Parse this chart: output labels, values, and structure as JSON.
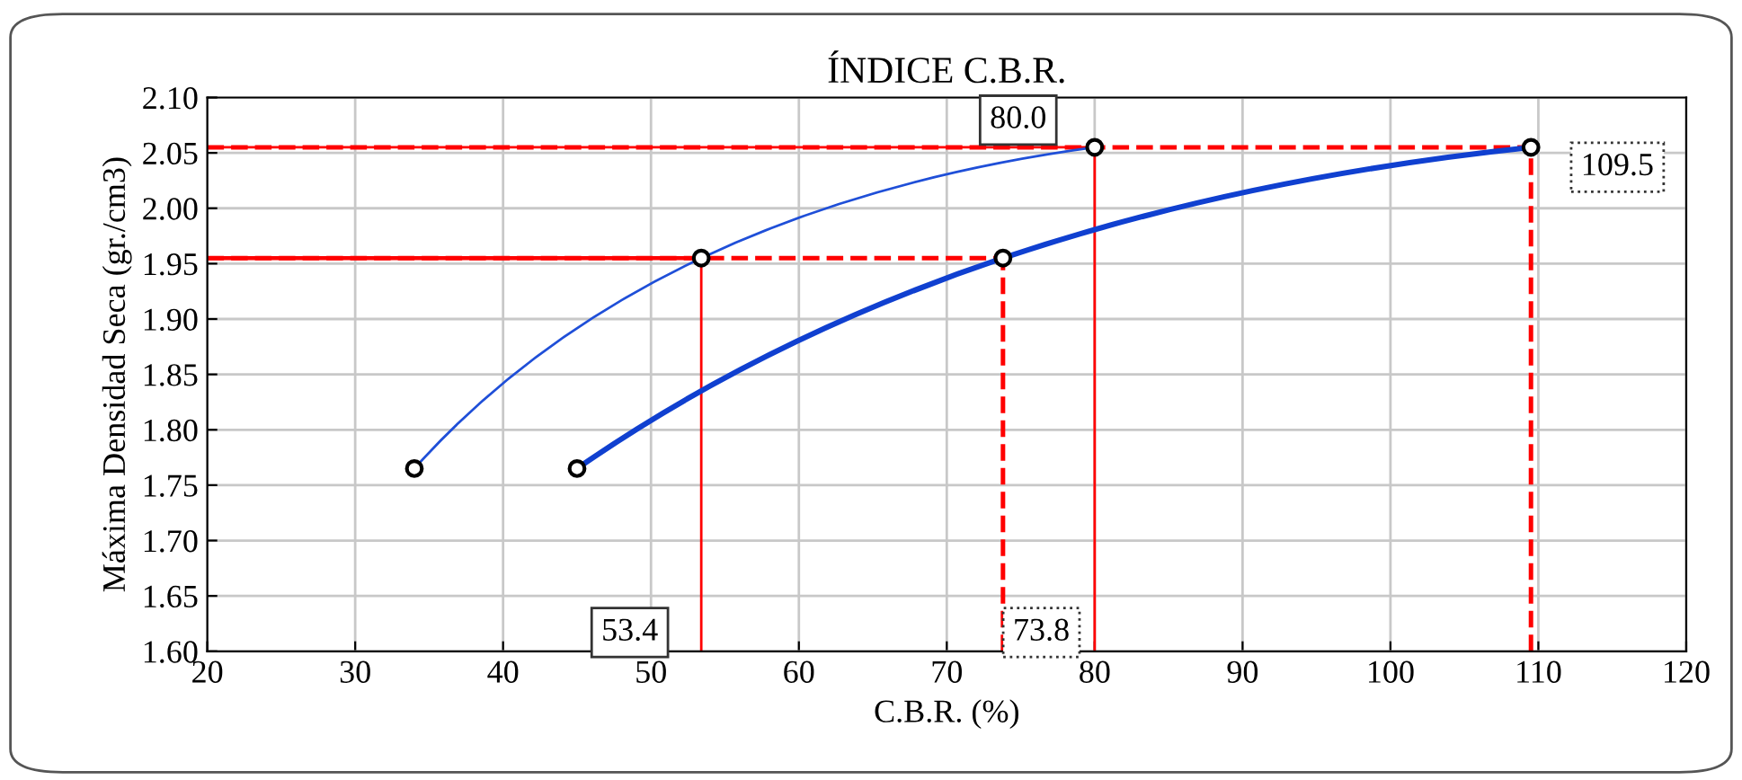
{
  "chart_data": {
    "type": "line",
    "title": "ÍNDICE C.B.R.",
    "xlabel": "C.B.R. (%)",
    "ylabel": "Máxima Densidad Seca (gr./cm3)",
    "xlim": [
      20,
      120
    ],
    "xticks": [
      20,
      30,
      40,
      50,
      60,
      70,
      80,
      90,
      100,
      110,
      120
    ],
    "ylim": [
      1.6,
      2.1
    ],
    "yticks": [
      {
        "value": 1.6,
        "label": "1.60"
      },
      {
        "value": 1.65,
        "label": "1.65"
      },
      {
        "value": 1.7,
        "label": "1.70"
      },
      {
        "value": 1.75,
        "label": "1.75"
      },
      {
        "value": 1.8,
        "label": "1.80"
      },
      {
        "value": 1.85,
        "label": "1.85"
      },
      {
        "value": 1.9,
        "label": "1.90"
      },
      {
        "value": 1.95,
        "label": "1.95"
      },
      {
        "value": 2.0,
        "label": "2.00"
      },
      {
        "value": 2.05,
        "label": "2.05"
      },
      {
        "value": 2.1,
        "label": "2.10"
      }
    ],
    "grid": true,
    "marker": "circle",
    "line_style": "solid",
    "series": [
      {
        "color": "#1f4fd8",
        "x": [
          34,
          53.4,
          80
        ],
        "values": [
          1.765,
          1.955,
          2.055
        ]
      },
      {
        "color": "#1040d0",
        "x": [
          45,
          73.8,
          109.5
        ],
        "values": [
          1.765,
          1.955,
          2.055
        ]
      }
    ],
    "ref_lines": [
      {
        "axis": "x",
        "value": 53.4,
        "label": "53.4",
        "color": "#ff0000",
        "line_style": "solid"
      },
      {
        "axis": "x",
        "value": 73.8,
        "label": "73.8",
        "color": "#ff0000",
        "line_style": "dashed"
      },
      {
        "axis": "x",
        "value": 80,
        "label": "80.0",
        "color": "#ff0000",
        "line_style": "solid"
      },
      {
        "axis": "x",
        "value": 109.5,
        "label": "109.5",
        "color": "#ff0000",
        "line_style": "dashed"
      },
      {
        "axis": "y",
        "value": 1.955,
        "color": "#ff0000",
        "line_style": "solid"
      },
      {
        "axis": "y",
        "value": 1.955,
        "color": "#ff0000",
        "line_style": "dashed"
      },
      {
        "axis": "y",
        "value": 2.055,
        "color": "#ff0000",
        "line_style": "solid"
      },
      {
        "axis": "y",
        "value": 2.055,
        "color": "#ff0000",
        "line_style": "dashed"
      }
    ]
  }
}
